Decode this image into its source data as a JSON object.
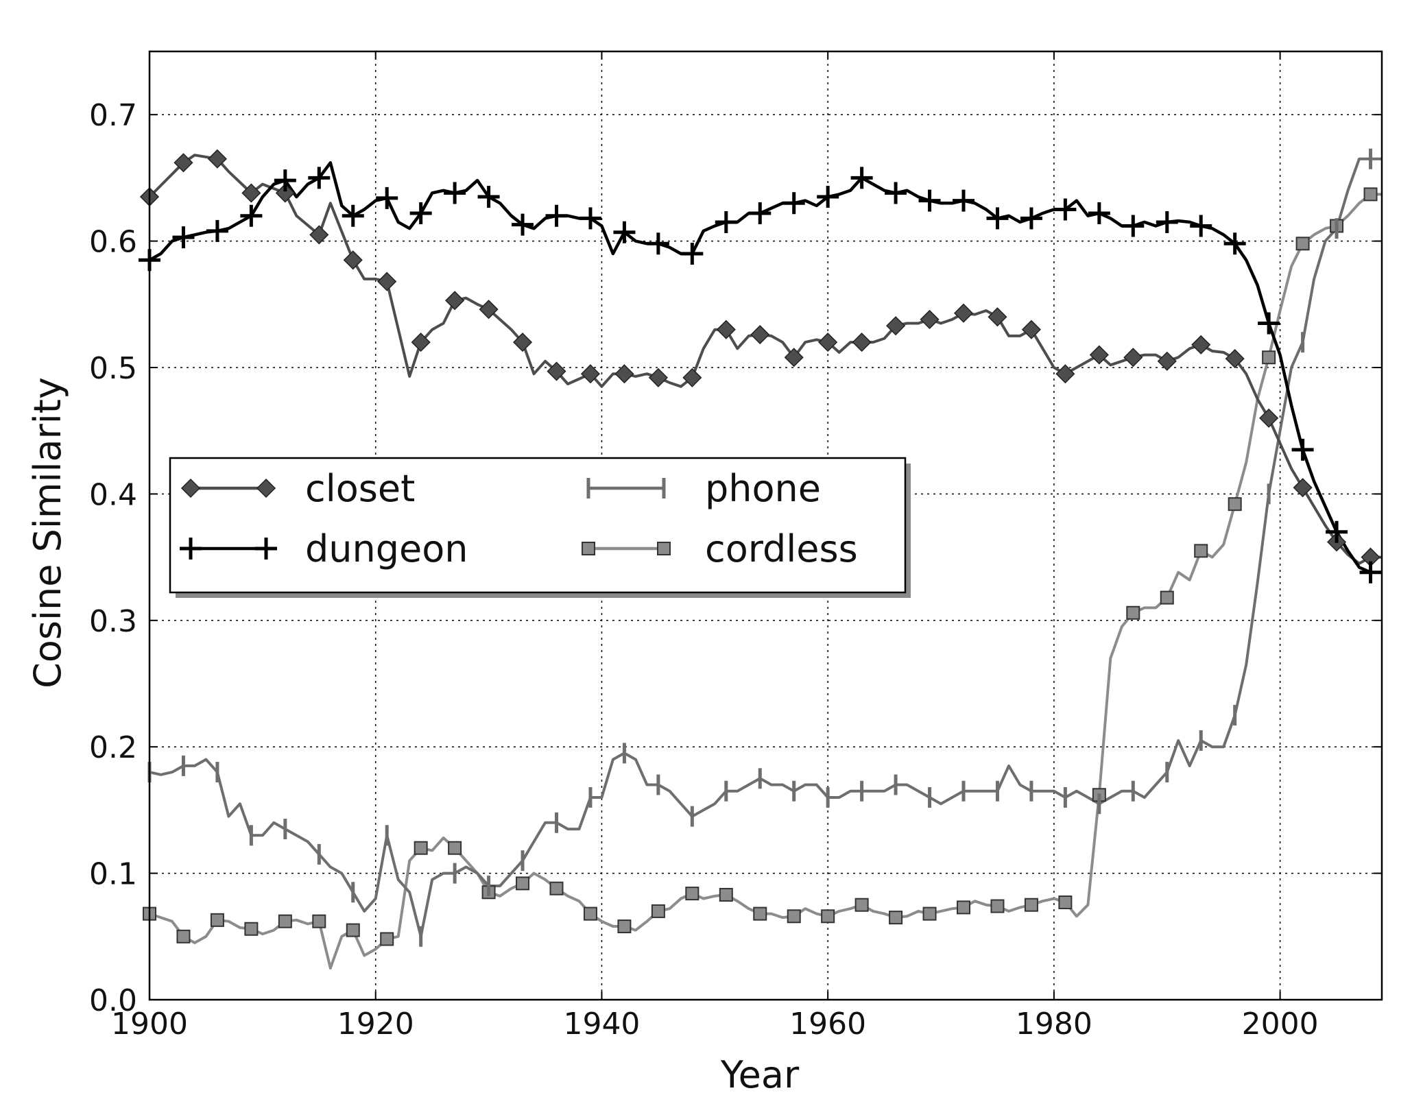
{
  "chart_data": {
    "type": "line",
    "xlabel": "Year",
    "ylabel": "Cosine Similarity",
    "xlim": [
      1900,
      2009
    ],
    "ylim": [
      0.0,
      0.75
    ],
    "xticks": [
      1900,
      1920,
      1940,
      1960,
      1980,
      2000
    ],
    "xtick_labels": [
      "1900",
      "1920",
      "1940",
      "1960",
      "1980",
      "2000"
    ],
    "yticks": [
      0.0,
      0.1,
      0.2,
      0.3,
      0.4,
      0.5,
      0.6,
      0.7
    ],
    "ytick_labels": [
      "0.0",
      "0.1",
      "0.2",
      "0.3",
      "0.4",
      "0.5",
      "0.6",
      "0.7"
    ],
    "grid": true,
    "legend": {
      "placement": "center-left",
      "columns": 2
    },
    "series": [
      {
        "name": "closet",
        "color": "#4d4d4d",
        "marker": "diamond",
        "x": [
          1900,
          1903,
          1904,
          1906,
          1907,
          1909,
          1910,
          1912,
          1913,
          1915,
          1916,
          1918,
          1919,
          1920,
          1921,
          1923,
          1924,
          1925,
          1926,
          1927,
          1928,
          1929,
          1930,
          1932,
          1933,
          1934,
          1935,
          1936,
          1937,
          1939,
          1940,
          1941,
          1942,
          1943,
          1944,
          1945,
          1946,
          1947,
          1948,
          1949,
          1950,
          1951,
          1952,
          1953,
          1954,
          1955,
          1956,
          1957,
          1958,
          1959,
          1960,
          1961,
          1962,
          1963,
          1964,
          1965,
          1966,
          1967,
          1968,
          1969,
          1970,
          1971,
          1972,
          1973,
          1974,
          1975,
          1976,
          1977,
          1978,
          1979,
          1980,
          1981,
          1982,
          1983,
          1984,
          1985,
          1986,
          1987,
          1988,
          1989,
          1990,
          1991,
          1992,
          1993,
          1994,
          1995,
          1996,
          1997,
          1998,
          1999,
          2000,
          2001,
          2002,
          2003,
          2004,
          2005,
          2006,
          2007,
          2008,
          2009
        ],
        "y": [
          0.635,
          0.662,
          0.668,
          0.665,
          0.655,
          0.638,
          0.645,
          0.638,
          0.62,
          0.605,
          0.63,
          0.585,
          0.57,
          0.57,
          0.568,
          0.493,
          0.52,
          0.53,
          0.535,
          0.553,
          0.555,
          0.55,
          0.546,
          0.53,
          0.52,
          0.495,
          0.505,
          0.497,
          0.487,
          0.495,
          0.485,
          0.495,
          0.495,
          0.493,
          0.495,
          0.492,
          0.488,
          0.485,
          0.492,
          0.515,
          0.53,
          0.53,
          0.515,
          0.525,
          0.526,
          0.525,
          0.52,
          0.508,
          0.52,
          0.522,
          0.52,
          0.512,
          0.52,
          0.52,
          0.52,
          0.523,
          0.533,
          0.535,
          0.535,
          0.538,
          0.535,
          0.538,
          0.543,
          0.542,
          0.545,
          0.54,
          0.525,
          0.525,
          0.53,
          0.515,
          0.5,
          0.495,
          0.5,
          0.505,
          0.51,
          0.502,
          0.505,
          0.508,
          0.51,
          0.51,
          0.505,
          0.508,
          0.515,
          0.518,
          0.513,
          0.512,
          0.507,
          0.495,
          0.475,
          0.46,
          0.44,
          0.42,
          0.405,
          0.39,
          0.375,
          0.362,
          0.352,
          0.345,
          0.35,
          0.35
        ],
        "marker_x": [
          1900,
          1903,
          1906,
          1909,
          1912,
          1915,
          1918,
          1921,
          1924,
          1927,
          1930,
          1933,
          1936,
          1939,
          1942,
          1945,
          1948,
          1951,
          1954,
          1957,
          1960,
          1963,
          1966,
          1969,
          1972,
          1975,
          1978,
          1981,
          1984,
          1987,
          1990,
          1993,
          1996,
          1999,
          2002,
          2005,
          2008
        ]
      },
      {
        "name": "dungeon",
        "color": "#000000",
        "marker": "plus",
        "x": [
          1900,
          1901,
          1902,
          1903,
          1904,
          1905,
          1906,
          1907,
          1908,
          1909,
          1910,
          1911,
          1912,
          1913,
          1914,
          1915,
          1916,
          1917,
          1918,
          1919,
          1920,
          1921,
          1922,
          1923,
          1924,
          1925,
          1926,
          1927,
          1928,
          1929,
          1930,
          1931,
          1932,
          1933,
          1934,
          1935,
          1936,
          1937,
          1938,
          1939,
          1940,
          1941,
          1942,
          1943,
          1944,
          1945,
          1946,
          1947,
          1948,
          1949,
          1950,
          1951,
          1952,
          1953,
          1954,
          1955,
          1956,
          1957,
          1958,
          1959,
          1960,
          1961,
          1962,
          1963,
          1964,
          1965,
          1966,
          1967,
          1968,
          1969,
          1970,
          1971,
          1972,
          1973,
          1974,
          1975,
          1976,
          1977,
          1978,
          1979,
          1980,
          1981,
          1982,
          1983,
          1984,
          1985,
          1986,
          1987,
          1988,
          1989,
          1990,
          1991,
          1992,
          1993,
          1994,
          1995,
          1996,
          1997,
          1998,
          1999,
          2000,
          2001,
          2002,
          2003,
          2004,
          2005,
          2006,
          2007,
          2008,
          2009
        ],
        "y": [
          0.585,
          0.59,
          0.6,
          0.603,
          0.605,
          0.607,
          0.608,
          0.61,
          0.615,
          0.62,
          0.635,
          0.645,
          0.648,
          0.635,
          0.645,
          0.65,
          0.662,
          0.628,
          0.62,
          0.625,
          0.632,
          0.634,
          0.615,
          0.61,
          0.622,
          0.638,
          0.64,
          0.638,
          0.64,
          0.648,
          0.635,
          0.63,
          0.62,
          0.613,
          0.61,
          0.618,
          0.62,
          0.62,
          0.618,
          0.618,
          0.612,
          0.59,
          0.607,
          0.6,
          0.598,
          0.598,
          0.595,
          0.59,
          0.59,
          0.608,
          0.612,
          0.615,
          0.615,
          0.622,
          0.622,
          0.626,
          0.63,
          0.63,
          0.632,
          0.628,
          0.635,
          0.637,
          0.64,
          0.65,
          0.645,
          0.64,
          0.638,
          0.64,
          0.635,
          0.632,
          0.63,
          0.63,
          0.632,
          0.63,
          0.625,
          0.618,
          0.62,
          0.615,
          0.618,
          0.622,
          0.625,
          0.625,
          0.632,
          0.62,
          0.622,
          0.618,
          0.612,
          0.612,
          0.615,
          0.612,
          0.615,
          0.616,
          0.615,
          0.612,
          0.61,
          0.605,
          0.598,
          0.585,
          0.565,
          0.535,
          0.51,
          0.47,
          0.435,
          0.41,
          0.39,
          0.37,
          0.355,
          0.342,
          0.338,
          0.338
        ],
        "marker_x": [
          1900,
          1903,
          1906,
          1909,
          1912,
          1915,
          1918,
          1921,
          1924,
          1927,
          1930,
          1933,
          1936,
          1939,
          1942,
          1945,
          1948,
          1951,
          1954,
          1957,
          1960,
          1963,
          1966,
          1969,
          1972,
          1975,
          1978,
          1981,
          1984,
          1987,
          1990,
          1993,
          1996,
          1999,
          2002,
          2005,
          2008
        ]
      },
      {
        "name": "phone",
        "color": "#6e6e6e",
        "marker": "vline",
        "x": [
          1900,
          1901,
          1902,
          1903,
          1904,
          1905,
          1906,
          1907,
          1908,
          1909,
          1910,
          1911,
          1912,
          1913,
          1914,
          1915,
          1916,
          1917,
          1918,
          1919,
          1920,
          1921,
          1922,
          1923,
          1924,
          1925,
          1926,
          1927,
          1928,
          1929,
          1930,
          1931,
          1932,
          1933,
          1934,
          1935,
          1936,
          1937,
          1938,
          1939,
          1940,
          1941,
          1942,
          1943,
          1944,
          1945,
          1946,
          1947,
          1948,
          1949,
          1950,
          1951,
          1952,
          1953,
          1954,
          1955,
          1956,
          1957,
          1958,
          1959,
          1960,
          1961,
          1962,
          1963,
          1964,
          1965,
          1966,
          1967,
          1968,
          1969,
          1970,
          1971,
          1972,
          1973,
          1974,
          1975,
          1976,
          1977,
          1978,
          1979,
          1980,
          1981,
          1982,
          1983,
          1984,
          1985,
          1986,
          1987,
          1988,
          1989,
          1990,
          1991,
          1992,
          1993,
          1994,
          1995,
          1996,
          1997,
          1998,
          1999,
          2000,
          2001,
          2002,
          2003,
          2004,
          2005,
          2006,
          2007,
          2008,
          2009
        ],
        "y": [
          0.18,
          0.178,
          0.18,
          0.185,
          0.185,
          0.19,
          0.18,
          0.145,
          0.155,
          0.13,
          0.13,
          0.14,
          0.135,
          0.13,
          0.125,
          0.115,
          0.105,
          0.1,
          0.085,
          0.07,
          0.08,
          0.13,
          0.095,
          0.085,
          0.05,
          0.095,
          0.1,
          0.1,
          0.105,
          0.1,
          0.09,
          0.09,
          0.1,
          0.11,
          0.125,
          0.14,
          0.14,
          0.135,
          0.135,
          0.16,
          0.16,
          0.19,
          0.195,
          0.19,
          0.17,
          0.17,
          0.165,
          0.155,
          0.145,
          0.15,
          0.155,
          0.165,
          0.165,
          0.17,
          0.175,
          0.17,
          0.17,
          0.165,
          0.17,
          0.17,
          0.16,
          0.16,
          0.165,
          0.165,
          0.165,
          0.165,
          0.17,
          0.17,
          0.165,
          0.16,
          0.155,
          0.16,
          0.165,
          0.165,
          0.165,
          0.165,
          0.185,
          0.17,
          0.165,
          0.165,
          0.165,
          0.16,
          0.165,
          0.16,
          0.155,
          0.16,
          0.165,
          0.165,
          0.16,
          0.17,
          0.18,
          0.205,
          0.185,
          0.205,
          0.2,
          0.2,
          0.225,
          0.265,
          0.33,
          0.4,
          0.45,
          0.5,
          0.52,
          0.57,
          0.6,
          0.61,
          0.64,
          0.665,
          0.665,
          0.665
        ],
        "marker_x": [
          1900,
          1903,
          1906,
          1909,
          1912,
          1915,
          1918,
          1921,
          1924,
          1927,
          1930,
          1933,
          1936,
          1939,
          1942,
          1945,
          1948,
          1951,
          1954,
          1957,
          1960,
          1963,
          1966,
          1969,
          1972,
          1975,
          1978,
          1981,
          1984,
          1987,
          1990,
          1993,
          1996,
          1999,
          2002,
          2005,
          2008
        ]
      },
      {
        "name": "cordless",
        "color": "#8c8c8c",
        "marker": "square",
        "x": [
          1900,
          1901,
          1902,
          1903,
          1904,
          1905,
          1906,
          1907,
          1908,
          1909,
          1910,
          1911,
          1912,
          1913,
          1914,
          1915,
          1916,
          1917,
          1918,
          1919,
          1920,
          1921,
          1922,
          1923,
          1924,
          1925,
          1926,
          1927,
          1928,
          1929,
          1930,
          1931,
          1932,
          1933,
          1934,
          1935,
          1936,
          1937,
          1938,
          1939,
          1940,
          1941,
          1942,
          1943,
          1944,
          1945,
          1946,
          1947,
          1948,
          1949,
          1950,
          1951,
          1952,
          1953,
          1954,
          1955,
          1956,
          1957,
          1958,
          1959,
          1960,
          1961,
          1962,
          1963,
          1964,
          1965,
          1966,
          1967,
          1968,
          1969,
          1970,
          1971,
          1972,
          1973,
          1974,
          1975,
          1976,
          1977,
          1978,
          1979,
          1980,
          1981,
          1982,
          1983,
          1984,
          1985,
          1986,
          1987,
          1988,
          1989,
          1990,
          1991,
          1992,
          1993,
          1994,
          1995,
          1996,
          1997,
          1998,
          1999,
          2000,
          2001,
          2002,
          2003,
          2004,
          2005,
          2006,
          2007,
          2008,
          2009
        ],
        "y": [
          0.068,
          0.065,
          0.062,
          0.05,
          0.045,
          0.05,
          0.063,
          0.062,
          0.057,
          0.056,
          0.052,
          0.055,
          0.062,
          0.063,
          0.06,
          0.062,
          0.025,
          0.05,
          0.055,
          0.035,
          0.04,
          0.048,
          0.05,
          0.11,
          0.12,
          0.118,
          0.128,
          0.12,
          0.11,
          0.1,
          0.085,
          0.082,
          0.088,
          0.092,
          0.1,
          0.095,
          0.088,
          0.082,
          0.078,
          0.068,
          0.062,
          0.058,
          0.058,
          0.055,
          0.062,
          0.07,
          0.072,
          0.08,
          0.084,
          0.08,
          0.082,
          0.083,
          0.078,
          0.072,
          0.068,
          0.068,
          0.065,
          0.066,
          0.072,
          0.068,
          0.066,
          0.07,
          0.072,
          0.075,
          0.07,
          0.068,
          0.065,
          0.066,
          0.07,
          0.068,
          0.07,
          0.072,
          0.073,
          0.078,
          0.075,
          0.074,
          0.07,
          0.073,
          0.075,
          0.078,
          0.08,
          0.077,
          0.066,
          0.075,
          0.162,
          0.27,
          0.295,
          0.306,
          0.31,
          0.31,
          0.318,
          0.338,
          0.332,
          0.355,
          0.35,
          0.36,
          0.392,
          0.425,
          0.475,
          0.508,
          0.545,
          0.58,
          0.598,
          0.605,
          0.61,
          0.612,
          0.62,
          0.63,
          0.637,
          0.637
        ],
        "marker_x": [
          1900,
          1903,
          1906,
          1909,
          1912,
          1915,
          1918,
          1921,
          1924,
          1927,
          1930,
          1933,
          1936,
          1939,
          1942,
          1945,
          1948,
          1951,
          1954,
          1957,
          1960,
          1963,
          1966,
          1969,
          1972,
          1975,
          1978,
          1981,
          1984,
          1987,
          1990,
          1993,
          1996,
          1999,
          2002,
          2005,
          2008
        ]
      }
    ]
  }
}
